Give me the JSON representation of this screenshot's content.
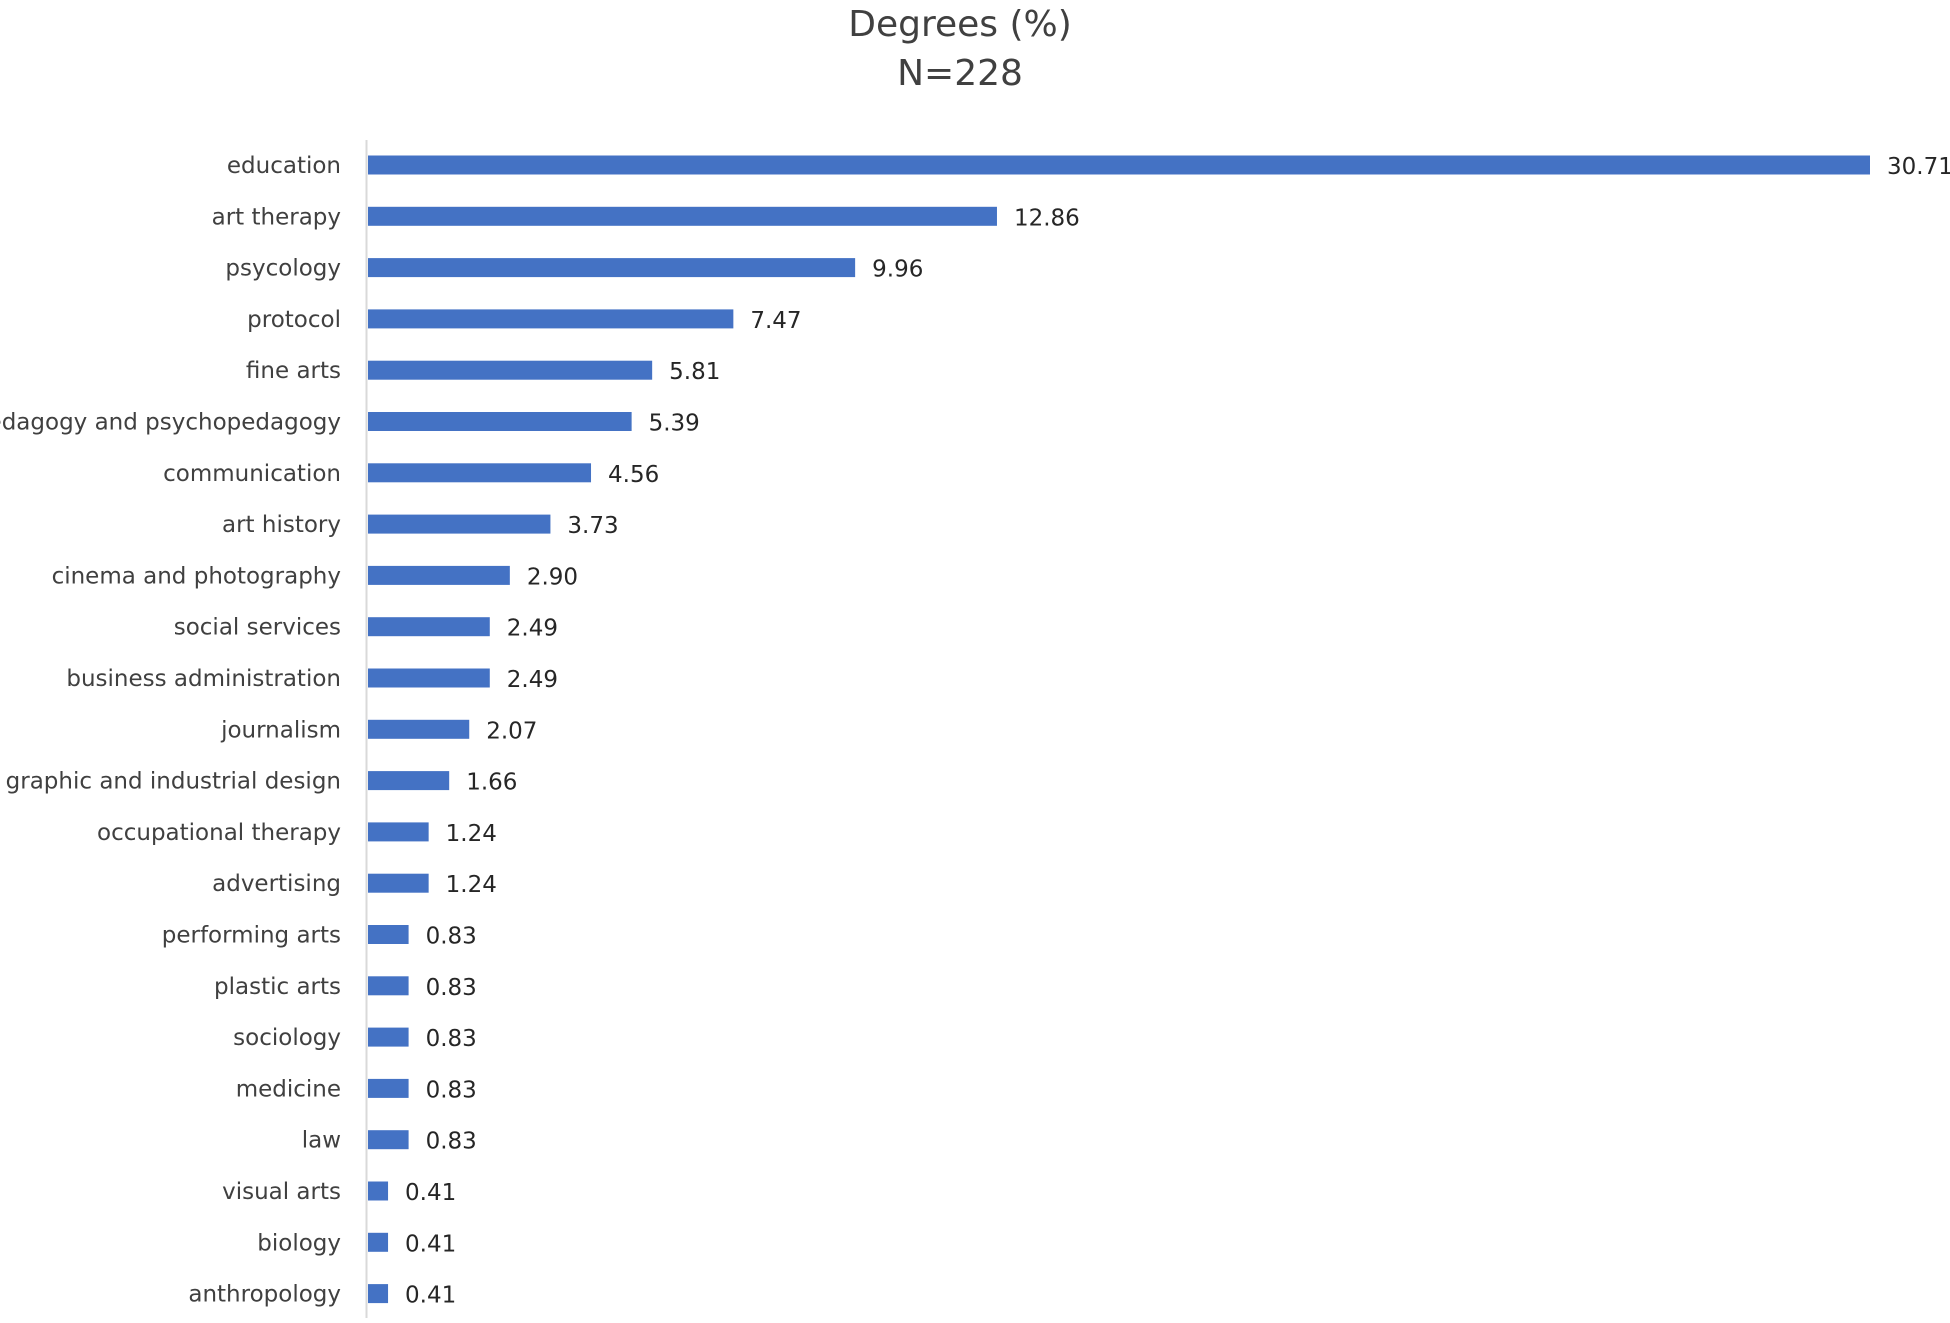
{
  "chart_data": {
    "type": "bar",
    "orientation": "horizontal",
    "title": "Degrees (%)",
    "subtitle": "N=228",
    "xlabel": "",
    "ylabel": "",
    "grid": false,
    "legend": "none",
    "bar_color": "#4472C4",
    "xlim": [
      0,
      30.71
    ],
    "categories": [
      "education",
      "art therapy",
      "psycology",
      "protocol",
      "fine arts",
      "pedagogy and psychopedagogy",
      "communication",
      "art history",
      "cinema and photography",
      "social services",
      "business administration",
      "journalism",
      "graphic and industrial design",
      "occupational therapy",
      "advertising",
      "performing arts",
      "plastic arts",
      "sociology",
      "medicine",
      "law",
      "visual arts",
      "biology",
      "anthropology"
    ],
    "values": [
      30.71,
      12.86,
      9.96,
      7.47,
      5.81,
      5.39,
      4.56,
      3.73,
      2.9,
      2.49,
      2.49,
      2.07,
      1.66,
      1.24,
      1.24,
      0.83,
      0.83,
      0.83,
      0.83,
      0.83,
      0.41,
      0.41,
      0.41
    ],
    "value_labels": [
      "30.71",
      "12.86",
      "9.96",
      "7.47",
      "5.81",
      "5.39",
      "4.56",
      "3.73",
      "2.90",
      "2.49",
      "2.49",
      "2.07",
      "1.66",
      "1.24",
      "1.24",
      "0.83",
      "0.83",
      "0.83",
      "0.83",
      "0.83",
      "0.41",
      "0.41",
      "0.41"
    ]
  }
}
